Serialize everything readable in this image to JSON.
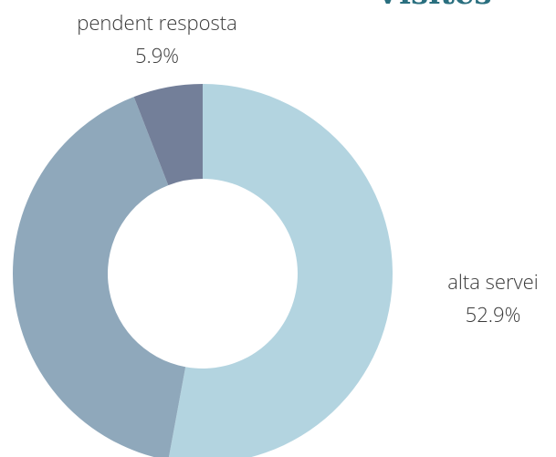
{
  "chart_data": {
    "type": "donut",
    "title": "Visites",
    "categories": [
      "alta servei",
      null,
      "pendent resposta"
    ],
    "values": [
      52.9,
      41.2,
      5.9
    ],
    "value_labels": [
      "52.9%",
      null,
      "5.9%"
    ],
    "colors": [
      "#b3d4e0",
      "#8fa8bb",
      "#737f99"
    ]
  }
}
